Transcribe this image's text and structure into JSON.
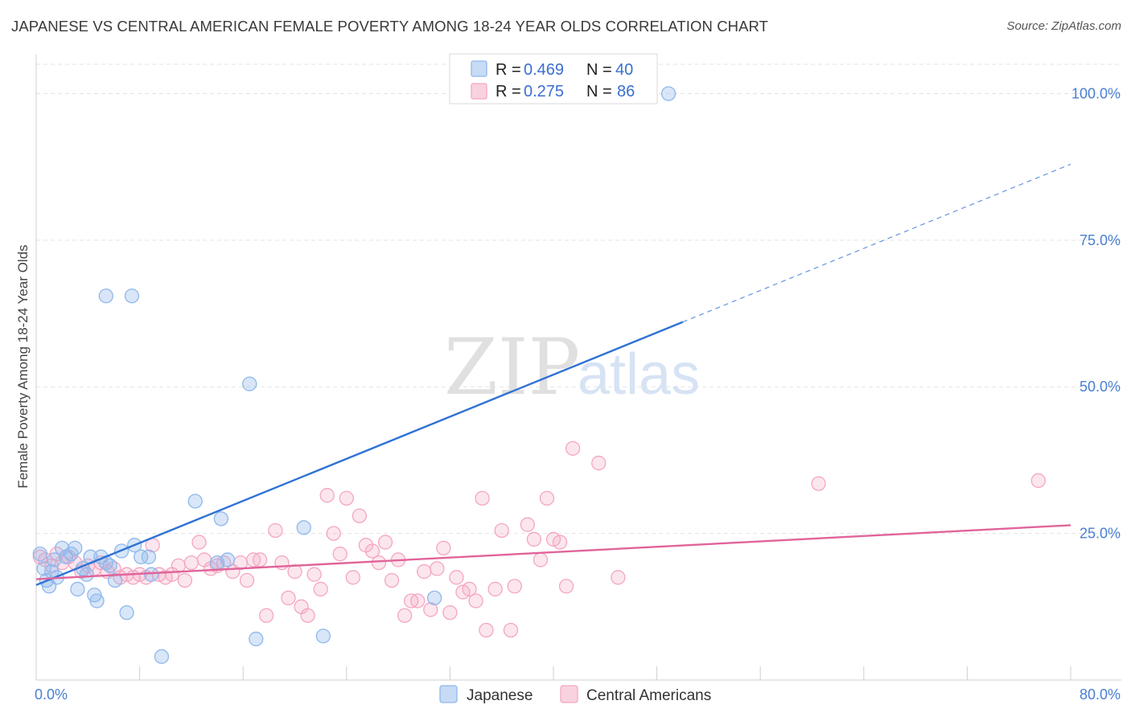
{
  "chart_data": {
    "type": "scatter",
    "title": "JAPANESE VS CENTRAL AMERICAN FEMALE POVERTY AMONG 18-24 YEAR OLDS CORRELATION CHART",
    "source": "Source: ZipAtlas.com",
    "ylabel": "Female Poverty Among 18-24 Year Olds",
    "xlim": [
      0,
      80
    ],
    "ylim": [
      0,
      105
    ],
    "x_tick_labels": [
      "0.0%",
      "80.0%"
    ],
    "y_ticks": [
      25,
      50,
      75,
      100
    ],
    "y_tick_labels": [
      "25.0%",
      "50.0%",
      "75.0%",
      "100.0%"
    ],
    "grid": true,
    "legend": {
      "position": "top-center",
      "rows": [
        {
          "r_label": "R = ",
          "r_value": "0.469",
          "n_label": "N = ",
          "n_value": "40"
        },
        {
          "r_label": "R = ",
          "r_value": "0.275",
          "n_label": "N = ",
          "n_value": "86"
        }
      ]
    },
    "watermark": {
      "zip": "ZIP",
      "atlas": "atlas"
    },
    "series": [
      {
        "name": "Japanese",
        "color": "#8fb8ec",
        "line_color": "#2f72d4",
        "trend": {
          "x_solid_end": 50,
          "x_dash_end": 80,
          "y_at_0": 16.2,
          "slope": 0.897
        },
        "points": [
          [
            0.3,
            21.5
          ],
          [
            0.6,
            19.0
          ],
          [
            0.8,
            17.0
          ],
          [
            1.0,
            16.0
          ],
          [
            1.2,
            18.5
          ],
          [
            1.4,
            20.5
          ],
          [
            1.6,
            17.5
          ],
          [
            2.0,
            22.5
          ],
          [
            2.3,
            21.0
          ],
          [
            2.7,
            21.5
          ],
          [
            3.0,
            22.5
          ],
          [
            3.2,
            15.5
          ],
          [
            3.6,
            19.0
          ],
          [
            3.9,
            18.0
          ],
          [
            4.2,
            21.0
          ],
          [
            4.5,
            14.5
          ],
          [
            4.7,
            13.5
          ],
          [
            5.0,
            21.0
          ],
          [
            5.4,
            20.0
          ],
          [
            5.7,
            19.5
          ],
          [
            6.1,
            17.0
          ],
          [
            6.6,
            22.0
          ],
          [
            7.0,
            11.5
          ],
          [
            7.6,
            23.0
          ],
          [
            8.1,
            21.0
          ],
          [
            8.9,
            18.0
          ],
          [
            5.4,
            65.5
          ],
          [
            7.4,
            65.5
          ],
          [
            12.3,
            30.5
          ],
          [
            14.0,
            20.0
          ],
          [
            14.3,
            27.5
          ],
          [
            14.8,
            20.5
          ],
          [
            16.5,
            50.5
          ],
          [
            17.0,
            7.0
          ],
          [
            20.7,
            26.0
          ],
          [
            22.2,
            7.5
          ],
          [
            30.8,
            14.0
          ],
          [
            9.7,
            4.0
          ],
          [
            48.9,
            100.0
          ],
          [
            8.7,
            21.0
          ]
        ]
      },
      {
        "name": "Central Americans",
        "color": "#f4a6c1",
        "line_color": "#e0649a",
        "trend": {
          "x_end": 80,
          "y_at_0": 17.2,
          "slope": 0.115
        },
        "points": [
          [
            0.3,
            21.0
          ],
          [
            0.7,
            20.5
          ],
          [
            1.2,
            19.5
          ],
          [
            1.6,
            21.5
          ],
          [
            2.0,
            20.0
          ],
          [
            2.5,
            21.0
          ],
          [
            3.0,
            20.0
          ],
          [
            3.5,
            18.5
          ],
          [
            4.0,
            19.5
          ],
          [
            4.5,
            19.0
          ],
          [
            5.0,
            20.0
          ],
          [
            5.5,
            18.5
          ],
          [
            6.0,
            19.0
          ],
          [
            6.5,
            17.5
          ],
          [
            7.0,
            18.0
          ],
          [
            7.5,
            17.5
          ],
          [
            8.0,
            18.0
          ],
          [
            8.5,
            17.5
          ],
          [
            9.0,
            23.0
          ],
          [
            9.5,
            18.0
          ],
          [
            10.0,
            17.5
          ],
          [
            10.5,
            18.0
          ],
          [
            11.0,
            19.5
          ],
          [
            11.5,
            17.0
          ],
          [
            12.0,
            20.0
          ],
          [
            12.6,
            23.5
          ],
          [
            13.0,
            20.5
          ],
          [
            13.5,
            19.0
          ],
          [
            14.0,
            19.5
          ],
          [
            14.5,
            20.0
          ],
          [
            15.2,
            18.5
          ],
          [
            15.8,
            20.0
          ],
          [
            16.3,
            17.0
          ],
          [
            16.8,
            20.5
          ],
          [
            17.3,
            20.5
          ],
          [
            17.8,
            11.0
          ],
          [
            18.5,
            25.5
          ],
          [
            19.0,
            20.0
          ],
          [
            19.5,
            14.0
          ],
          [
            20.0,
            18.5
          ],
          [
            20.5,
            12.5
          ],
          [
            21.0,
            11.0
          ],
          [
            21.5,
            18.0
          ],
          [
            22.0,
            15.5
          ],
          [
            22.5,
            31.5
          ],
          [
            23.0,
            25.0
          ],
          [
            23.5,
            21.5
          ],
          [
            24.0,
            31.0
          ],
          [
            24.5,
            17.5
          ],
          [
            25.0,
            28.0
          ],
          [
            25.5,
            23.0
          ],
          [
            26.0,
            22.0
          ],
          [
            26.5,
            20.0
          ],
          [
            27.0,
            23.5
          ],
          [
            27.5,
            17.0
          ],
          [
            28.0,
            20.5
          ],
          [
            28.5,
            11.0
          ],
          [
            29.0,
            13.5
          ],
          [
            29.5,
            13.5
          ],
          [
            30.0,
            18.5
          ],
          [
            30.5,
            12.0
          ],
          [
            31.0,
            19.0
          ],
          [
            31.5,
            22.5
          ],
          [
            32.0,
            11.5
          ],
          [
            32.5,
            17.5
          ],
          [
            33.0,
            15.0
          ],
          [
            33.5,
            15.5
          ],
          [
            34.0,
            13.5
          ],
          [
            34.5,
            31.0
          ],
          [
            34.8,
            8.5
          ],
          [
            35.5,
            15.5
          ],
          [
            36.0,
            25.5
          ],
          [
            36.7,
            8.5
          ],
          [
            37.0,
            16.0
          ],
          [
            38.0,
            26.5
          ],
          [
            38.5,
            24.0
          ],
          [
            39.0,
            20.5
          ],
          [
            39.5,
            31.0
          ],
          [
            40.0,
            24.0
          ],
          [
            40.5,
            23.5
          ],
          [
            41.0,
            16.0
          ],
          [
            41.5,
            39.5
          ],
          [
            43.5,
            37.0
          ],
          [
            45.0,
            17.5
          ],
          [
            60.5,
            33.5
          ],
          [
            77.5,
            34.0
          ]
        ]
      }
    ]
  }
}
